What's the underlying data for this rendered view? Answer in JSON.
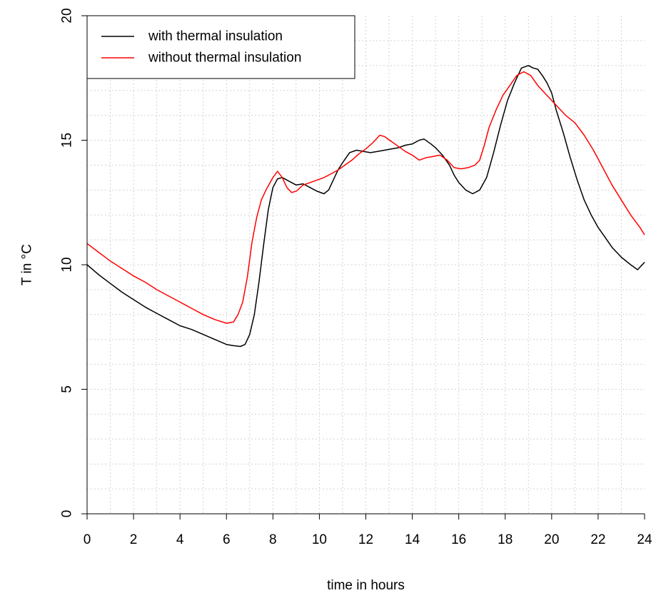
{
  "chart_data": {
    "type": "line",
    "title": "",
    "xlabel": "time in hours",
    "ylabel": "T in °C",
    "xlim": [
      0,
      24
    ],
    "ylim": [
      0,
      20
    ],
    "xticks": [
      0,
      2,
      4,
      6,
      8,
      10,
      12,
      14,
      16,
      18,
      20,
      22,
      24
    ],
    "yticks": [
      0,
      5,
      10,
      15,
      20
    ],
    "grid": true,
    "legend_position": "top-left",
    "series": [
      {
        "name": "with thermal insulation",
        "color": "#000000",
        "x": [
          0,
          0.5,
          1,
          1.5,
          2,
          2.5,
          3,
          3.5,
          4,
          4.5,
          5,
          5.5,
          6,
          6.3,
          6.6,
          6.8,
          7,
          7.2,
          7.4,
          7.6,
          7.8,
          8,
          8.2,
          8.4,
          8.6,
          8.8,
          9,
          9.3,
          9.6,
          9.9,
          10.2,
          10.4,
          10.6,
          10.8,
          11,
          11.3,
          11.6,
          11.9,
          12.2,
          12.5,
          12.8,
          13.1,
          13.4,
          13.7,
          14,
          14.3,
          14.5,
          14.8,
          15,
          15.3,
          15.6,
          15.8,
          16,
          16.3,
          16.6,
          16.9,
          17.2,
          17.5,
          17.8,
          18.1,
          18.4,
          18.7,
          19,
          19.2,
          19.4,
          19.6,
          19.8,
          20,
          20.2,
          20.5,
          20.8,
          21.1,
          21.4,
          21.7,
          22,
          22.3,
          22.6,
          23,
          23.4,
          23.7,
          24
        ],
        "y": [
          10.0,
          9.6,
          9.25,
          8.9,
          8.6,
          8.3,
          8.05,
          7.8,
          7.55,
          7.4,
          7.2,
          7.0,
          6.8,
          6.75,
          6.72,
          6.8,
          7.2,
          8.0,
          9.3,
          10.8,
          12.2,
          13.1,
          13.45,
          13.5,
          13.4,
          13.3,
          13.2,
          13.25,
          13.1,
          12.95,
          12.85,
          13.0,
          13.4,
          13.8,
          14.1,
          14.5,
          14.6,
          14.55,
          14.5,
          14.55,
          14.6,
          14.65,
          14.7,
          14.8,
          14.85,
          15.0,
          15.05,
          14.85,
          14.7,
          14.4,
          14.0,
          13.6,
          13.3,
          13.0,
          12.85,
          13.0,
          13.5,
          14.5,
          15.6,
          16.6,
          17.3,
          17.9,
          18.0,
          17.9,
          17.85,
          17.6,
          17.3,
          16.9,
          16.2,
          15.3,
          14.3,
          13.4,
          12.6,
          12.0,
          11.5,
          11.1,
          10.7,
          10.3,
          10.0,
          9.8,
          10.1
        ]
      },
      {
        "name": "without thermal insulation",
        "color": "#ff0000",
        "x": [
          0,
          0.5,
          1,
          1.5,
          2,
          2.5,
          3,
          3.5,
          4,
          4.5,
          5,
          5.5,
          6,
          6.3,
          6.5,
          6.7,
          6.9,
          7.1,
          7.3,
          7.5,
          7.7,
          8,
          8.2,
          8.4,
          8.6,
          8.8,
          9,
          9.3,
          9.6,
          9.9,
          10.2,
          10.5,
          10.8,
          11.1,
          11.4,
          11.7,
          12,
          12.3,
          12.6,
          12.8,
          13.1,
          13.4,
          13.7,
          14,
          14.3,
          14.6,
          14.9,
          15.2,
          15.5,
          15.8,
          16.1,
          16.4,
          16.7,
          16.9,
          17.1,
          17.3,
          17.6,
          17.9,
          18.2,
          18.5,
          18.8,
          19.1,
          19.4,
          19.8,
          20.2,
          20.6,
          21,
          21.4,
          21.8,
          22.2,
          22.6,
          23,
          23.4,
          23.8,
          24
        ],
        "y": [
          10.85,
          10.5,
          10.15,
          9.85,
          9.55,
          9.3,
          9.0,
          8.75,
          8.5,
          8.25,
          8.0,
          7.8,
          7.65,
          7.7,
          8.0,
          8.5,
          9.5,
          10.9,
          11.9,
          12.6,
          13.0,
          13.5,
          13.75,
          13.5,
          13.1,
          12.9,
          12.95,
          13.2,
          13.3,
          13.4,
          13.5,
          13.65,
          13.8,
          14.0,
          14.2,
          14.45,
          14.65,
          14.9,
          15.2,
          15.15,
          14.95,
          14.75,
          14.55,
          14.4,
          14.2,
          14.3,
          14.35,
          14.4,
          14.2,
          13.9,
          13.85,
          13.9,
          14.0,
          14.2,
          14.8,
          15.5,
          16.2,
          16.8,
          17.2,
          17.6,
          17.75,
          17.6,
          17.2,
          16.8,
          16.4,
          16.0,
          15.7,
          15.2,
          14.6,
          13.9,
          13.2,
          12.6,
          12.0,
          11.5,
          11.2
        ]
      }
    ]
  }
}
